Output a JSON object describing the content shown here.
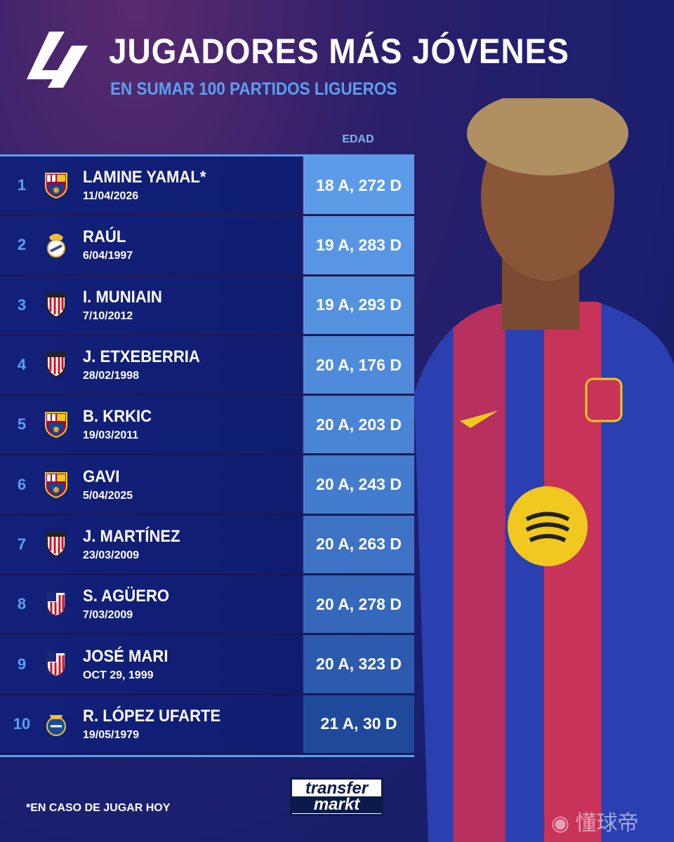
{
  "header": {
    "title": "JUGADORES MÁS JÓVENES",
    "subtitle": "EN SUMAR 100 PARTIDOS LIGUEROS",
    "logo": "LaLiga"
  },
  "table": {
    "age_header": "EDAD",
    "rows": [
      {
        "rank": "1",
        "club": "FC Barcelona",
        "name": "LAMINE YAMAL*",
        "date": "11/04/2026",
        "age": "18 A, 272 D"
      },
      {
        "rank": "2",
        "club": "Real Madrid",
        "name": "RAÚL",
        "date": "6/04/1997",
        "age": "19 A, 283 D"
      },
      {
        "rank": "3",
        "club": "Athletic Club",
        "name": "I. MUNIAIN",
        "date": "7/10/2012",
        "age": "19 A, 293 D"
      },
      {
        "rank": "4",
        "club": "Athletic Club",
        "name": "J. ETXEBERRIA",
        "date": "28/02/1998",
        "age": "20 A, 176 D"
      },
      {
        "rank": "5",
        "club": "FC Barcelona",
        "name": "B. KRKIC",
        "date": "19/03/2011",
        "age": "20 A, 203 D"
      },
      {
        "rank": "6",
        "club": "FC Barcelona",
        "name": "GAVI",
        "date": "5/04/2025",
        "age": "20 A, 243 D"
      },
      {
        "rank": "7",
        "club": "Athletic Club",
        "name": "J. MARTÍNEZ",
        "date": "23/03/2009",
        "age": "20 A, 263 D"
      },
      {
        "rank": "8",
        "club": "Atlético de Madrid",
        "name": "S. AGÜERO",
        "date": "7/03/2009",
        "age": "20 A, 278 D"
      },
      {
        "rank": "9",
        "club": "Atlético de Madrid",
        "name": "JOSÉ MARI",
        "date": "OCT 29, 1999",
        "age": "20 A, 323 D"
      },
      {
        "rank": "10",
        "club": "Real Sociedad",
        "name": "R. LÓPEZ UFARTE",
        "date": "19/05/1979",
        "age": "21 A, 30 D"
      }
    ]
  },
  "footnote": "*EN CASO DE JUGAR HOY",
  "source_logo": {
    "line1": "transfer",
    "line2": "markt"
  },
  "watermark": "懂球帝",
  "colors": {
    "accent": "#5aa0f0",
    "row_bg": "#12207a",
    "age_light": "#5b9be8",
    "age_dark": "#1a3a8a"
  }
}
